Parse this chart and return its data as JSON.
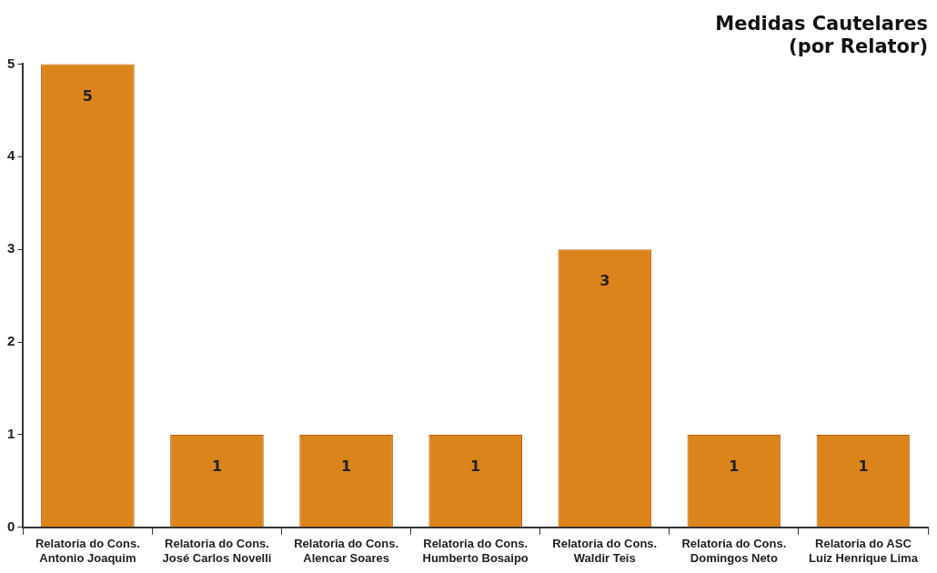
{
  "chart_data": {
    "type": "bar",
    "title": "Medidas Cautelares\n(por Relator)",
    "categories": [
      "Relatoria do Cons.\nAntonio Joaquim",
      "Relatoria do Cons.\nJosé Carlos Novelli",
      "Relatoria do Cons.\nAlencar Soares",
      "Relatoria do Cons.\nHumberto Bosaipo",
      "Relatoria do Cons.\nWaldir Teis",
      "Relatoria do Cons.\nDomingos Neto",
      "Relatoria do ASC\nLuiz Henrique Lima"
    ],
    "values": [
      5,
      1,
      1,
      1,
      3,
      1,
      1
    ],
    "color": "#db841b",
    "ylim": [
      0,
      5
    ],
    "yticks": [
      0,
      1,
      2,
      3,
      4,
      5
    ],
    "data_labels": true,
    "legend": false
  }
}
